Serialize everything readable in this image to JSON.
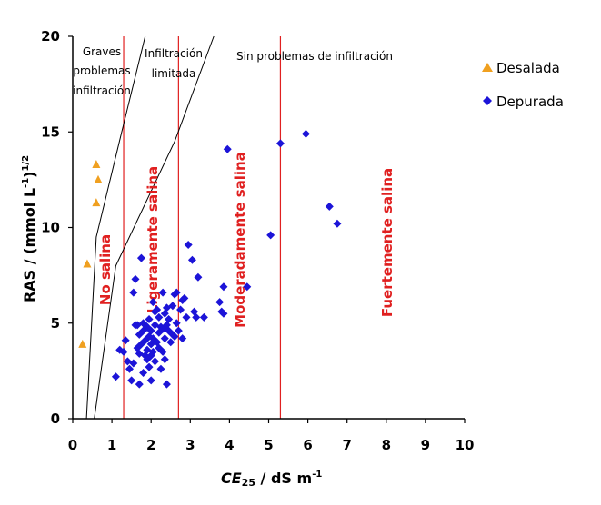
{
  "chart_data": {
    "type": "scatter",
    "title": "",
    "xlabel": "CE",
    "xlabel_sub": "25",
    "xlabel_units": " / dS m",
    "xlabel_sup": "-1",
    "ylabel": "RAS  / (mmol L",
    "ylabel_sup1": "-1",
    "ylabel_close": ")",
    "ylabel_sup2": "1/2",
    "xlim": [
      0,
      10
    ],
    "ylim": [
      0,
      20
    ],
    "x_ticks": [
      "0",
      "1",
      "2",
      "3",
      "4",
      "5",
      "6",
      "7",
      "8",
      "9",
      "10"
    ],
    "y_ticks": [
      "0",
      "5",
      "10",
      "15",
      "20"
    ],
    "grid": false,
    "legend_position": "top-right",
    "infiltration_lines": [
      {
        "points": [
          [
            0.35,
            0
          ],
          [
            0.6,
            9.5
          ],
          [
            1.25,
            15
          ],
          [
            1.85,
            20
          ]
        ]
      },
      {
        "points": [
          [
            0.55,
            0
          ],
          [
            1.1,
            8
          ],
          [
            2.6,
            14.5
          ],
          [
            3.6,
            20
          ]
        ]
      }
    ],
    "salinity_lines": [
      1.3,
      2.7,
      5.3
    ],
    "zone_labels": [
      "Graves",
      "problemas",
      "infiltración",
      "Infiltración",
      "limitada",
      "Sin problemas de infiltración"
    ],
    "salinity_labels": [
      "No salina",
      "Ligeramente salina",
      "Moderadamente salina",
      "Fuertemente salina"
    ],
    "series": [
      {
        "name": "Desalada",
        "color": "#f0a020",
        "marker": "triangle",
        "points": [
          [
            0.25,
            3.9
          ],
          [
            0.37,
            8.1
          ],
          [
            0.6,
            11.3
          ],
          [
            0.65,
            12.5
          ],
          [
            0.6,
            13.3
          ]
        ]
      },
      {
        "name": "Depurada",
        "color": "#1c14d8",
        "marker": "diamond",
        "points": [
          [
            1.1,
            2.2
          ],
          [
            1.2,
            3.6
          ],
          [
            1.3,
            3.5
          ],
          [
            1.35,
            4.1
          ],
          [
            1.4,
            3.0
          ],
          [
            1.45,
            2.6
          ],
          [
            1.5,
            2.0
          ],
          [
            1.55,
            2.9
          ],
          [
            1.55,
            6.6
          ],
          [
            1.6,
            7.3
          ],
          [
            1.65,
            3.7
          ],
          [
            1.65,
            4.9
          ],
          [
            1.7,
            1.8
          ],
          [
            1.7,
            4.4
          ],
          [
            1.75,
            3.9
          ],
          [
            1.75,
            8.4
          ],
          [
            1.8,
            4.6
          ],
          [
            1.8,
            2.4
          ],
          [
            1.8,
            5.0
          ],
          [
            1.85,
            3.3
          ],
          [
            1.85,
            4.1
          ],
          [
            1.9,
            3.6
          ],
          [
            1.9,
            4.8
          ],
          [
            1.9,
            3.1
          ],
          [
            1.95,
            2.7
          ],
          [
            1.95,
            4.3
          ],
          [
            1.95,
            5.2
          ],
          [
            2.0,
            3.9
          ],
          [
            2.0,
            4.6
          ],
          [
            2.0,
            2.0
          ],
          [
            2.05,
            3.5
          ],
          [
            2.05,
            4.2
          ],
          [
            2.05,
            6.1
          ],
          [
            2.1,
            4.9
          ],
          [
            2.1,
            3.0
          ],
          [
            2.15,
            5.7
          ],
          [
            2.15,
            4.0
          ],
          [
            2.2,
            3.7
          ],
          [
            2.2,
            5.3
          ],
          [
            2.2,
            4.5
          ],
          [
            2.25,
            2.6
          ],
          [
            2.25,
            4.8
          ],
          [
            2.3,
            3.5
          ],
          [
            2.3,
            6.6
          ],
          [
            2.35,
            5.5
          ],
          [
            2.35,
            4.2
          ],
          [
            2.35,
            3.1
          ],
          [
            2.4,
            4.9
          ],
          [
            2.4,
            5.8
          ],
          [
            2.4,
            1.8
          ],
          [
            2.45,
            4.6
          ],
          [
            2.45,
            5.2
          ],
          [
            2.5,
            4.0
          ],
          [
            2.55,
            4.4
          ],
          [
            2.55,
            5.9
          ],
          [
            2.6,
            6.5
          ],
          [
            2.6,
            4.3
          ],
          [
            2.65,
            6.6
          ],
          [
            2.65,
            5.0
          ],
          [
            2.7,
            4.6
          ],
          [
            2.75,
            5.7
          ],
          [
            2.8,
            6.2
          ],
          [
            2.85,
            6.3
          ],
          [
            2.8,
            4.2
          ],
          [
            2.9,
            5.3
          ],
          [
            2.95,
            9.1
          ],
          [
            3.05,
            8.3
          ],
          [
            3.1,
            5.6
          ],
          [
            3.15,
            5.3
          ],
          [
            3.2,
            7.4
          ],
          [
            3.35,
            5.3
          ],
          [
            3.75,
            6.1
          ],
          [
            3.8,
            5.6
          ],
          [
            3.85,
            5.5
          ],
          [
            3.85,
            6.9
          ],
          [
            3.95,
            14.1
          ],
          [
            4.45,
            6.9
          ],
          [
            5.05,
            9.6
          ],
          [
            5.3,
            14.4
          ],
          [
            5.95,
            14.9
          ],
          [
            6.55,
            11.1
          ],
          [
            6.75,
            10.2
          ],
          [
            1.7,
            3.4
          ],
          [
            2.0,
            3.3
          ],
          [
            2.3,
            4.7
          ],
          [
            1.6,
            4.9
          ],
          [
            2.1,
            5.6
          ],
          [
            1.85,
            4.9
          ]
        ]
      }
    ]
  }
}
